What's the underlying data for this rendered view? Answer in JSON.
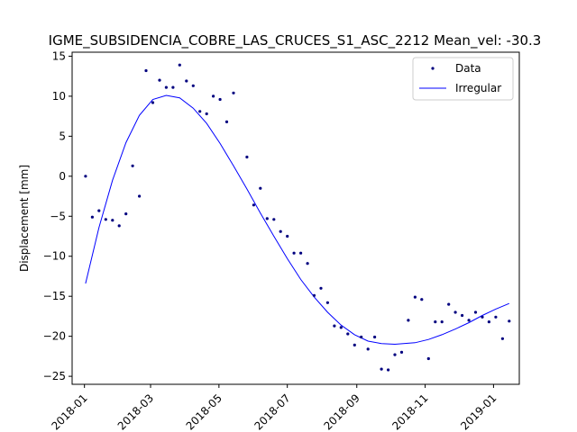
{
  "chart_data": {
    "type": "scatter",
    "title": "IGME_SUBSIDENCIA_COBRE_LAS_CRUCES_S1_ASC_2212    Mean_vel: -30.3",
    "xlabel": "",
    "ylabel": "Displacement [mm]",
    "ylim": [
      -26,
      15.5
    ],
    "xlim": [
      "2017-12-21",
      "2019-01-24"
    ],
    "yticks": [
      15,
      10,
      5,
      0,
      -5,
      -10,
      -15,
      -20,
      -25
    ],
    "xticks": [
      "2018-01",
      "2018-03",
      "2018-05",
      "2018-07",
      "2018-09",
      "2018-11",
      "2019-01"
    ],
    "grid": false,
    "legend_position": "upper right",
    "series": [
      {
        "name": "Data",
        "kind": "points",
        "color": "#00007f",
        "points": [
          [
            "2018-01-02",
            0.0
          ],
          [
            "2018-01-08",
            -5.1
          ],
          [
            "2018-01-14",
            -4.3
          ],
          [
            "2018-01-20",
            -5.4
          ],
          [
            "2018-01-26",
            -5.5
          ],
          [
            "2018-02-01",
            -6.2
          ],
          [
            "2018-02-07",
            -4.7
          ],
          [
            "2018-02-13",
            1.3
          ],
          [
            "2018-02-19",
            -2.5
          ],
          [
            "2018-02-25",
            13.2
          ],
          [
            "2018-03-03",
            9.2
          ],
          [
            "2018-03-09",
            12.0
          ],
          [
            "2018-03-15",
            11.1
          ],
          [
            "2018-03-21",
            11.1
          ],
          [
            "2018-03-27",
            13.9
          ],
          [
            "2018-04-02",
            11.9
          ],
          [
            "2018-04-08",
            11.3
          ],
          [
            "2018-04-14",
            8.1
          ],
          [
            "2018-04-20",
            7.8
          ],
          [
            "2018-04-26",
            10.0
          ],
          [
            "2018-05-02",
            9.6
          ],
          [
            "2018-05-08",
            6.8
          ],
          [
            "2018-05-14",
            10.4
          ],
          [
            "2018-05-26",
            2.4
          ],
          [
            "2018-06-01",
            -3.6
          ],
          [
            "2018-06-07",
            -1.5
          ],
          [
            "2018-06-13",
            -5.3
          ],
          [
            "2018-06-19",
            -5.4
          ],
          [
            "2018-06-25",
            -6.9
          ],
          [
            "2018-07-01",
            -7.5
          ],
          [
            "2018-07-07",
            -9.6
          ],
          [
            "2018-07-13",
            -9.6
          ],
          [
            "2018-07-19",
            -10.9
          ],
          [
            "2018-07-25",
            -14.9
          ],
          [
            "2018-07-31",
            -14.0
          ],
          [
            "2018-08-06",
            -15.8
          ],
          [
            "2018-08-12",
            -18.7
          ],
          [
            "2018-08-18",
            -18.9
          ],
          [
            "2018-08-24",
            -19.7
          ],
          [
            "2018-08-30",
            -21.1
          ],
          [
            "2018-09-05",
            -20.1
          ],
          [
            "2018-09-11",
            -21.6
          ],
          [
            "2018-09-17",
            -20.1
          ],
          [
            "2018-09-23",
            -24.1
          ],
          [
            "2018-09-29",
            -24.2
          ],
          [
            "2018-10-05",
            -22.3
          ],
          [
            "2018-10-11",
            -22.0
          ],
          [
            "2018-10-17",
            -18.0
          ],
          [
            "2018-10-23",
            -15.1
          ],
          [
            "2018-10-29",
            -15.4
          ],
          [
            "2018-11-04",
            -22.8
          ],
          [
            "2018-11-10",
            -18.2
          ],
          [
            "2018-11-16",
            -18.2
          ],
          [
            "2018-11-22",
            -16.0
          ],
          [
            "2018-11-28",
            -17.0
          ],
          [
            "2018-12-04",
            -17.4
          ],
          [
            "2018-12-10",
            -18.0
          ],
          [
            "2018-12-16",
            -17.0
          ],
          [
            "2018-12-22",
            -17.6
          ],
          [
            "2018-12-28",
            -18.2
          ],
          [
            "2019-01-03",
            -17.6
          ],
          [
            "2019-01-09",
            -20.3
          ],
          [
            "2019-01-15",
            -18.1
          ]
        ]
      },
      {
        "name": "Irregular",
        "kind": "line",
        "color": "#0000ff",
        "points": [
          [
            "2018-01-02",
            -13.4
          ],
          [
            "2018-01-14",
            -6.4
          ],
          [
            "2018-01-26",
            -0.5
          ],
          [
            "2018-02-07",
            4.2
          ],
          [
            "2018-02-19",
            7.6
          ],
          [
            "2018-03-03",
            9.6
          ],
          [
            "2018-03-15",
            10.1
          ],
          [
            "2018-03-27",
            9.8
          ],
          [
            "2018-04-08",
            8.5
          ],
          [
            "2018-04-20",
            6.6
          ],
          [
            "2018-05-02",
            4.1
          ],
          [
            "2018-05-14",
            1.3
          ],
          [
            "2018-05-26",
            -1.6
          ],
          [
            "2018-06-07",
            -4.6
          ],
          [
            "2018-06-19",
            -7.5
          ],
          [
            "2018-07-01",
            -10.3
          ],
          [
            "2018-07-13",
            -12.9
          ],
          [
            "2018-07-25",
            -15.1
          ],
          [
            "2018-08-06",
            -17.0
          ],
          [
            "2018-08-18",
            -18.6
          ],
          [
            "2018-08-30",
            -19.8
          ],
          [
            "2018-09-11",
            -20.6
          ],
          [
            "2018-09-23",
            -20.9
          ],
          [
            "2018-10-05",
            -21.0
          ],
          [
            "2018-10-23",
            -20.8
          ],
          [
            "2018-11-04",
            -20.4
          ],
          [
            "2018-11-16",
            -19.8
          ],
          [
            "2018-11-28",
            -19.1
          ],
          [
            "2018-12-10",
            -18.3
          ],
          [
            "2018-12-22",
            -17.4
          ],
          [
            "2019-01-03",
            -16.6
          ],
          [
            "2019-01-15",
            -15.9
          ]
        ]
      }
    ]
  }
}
